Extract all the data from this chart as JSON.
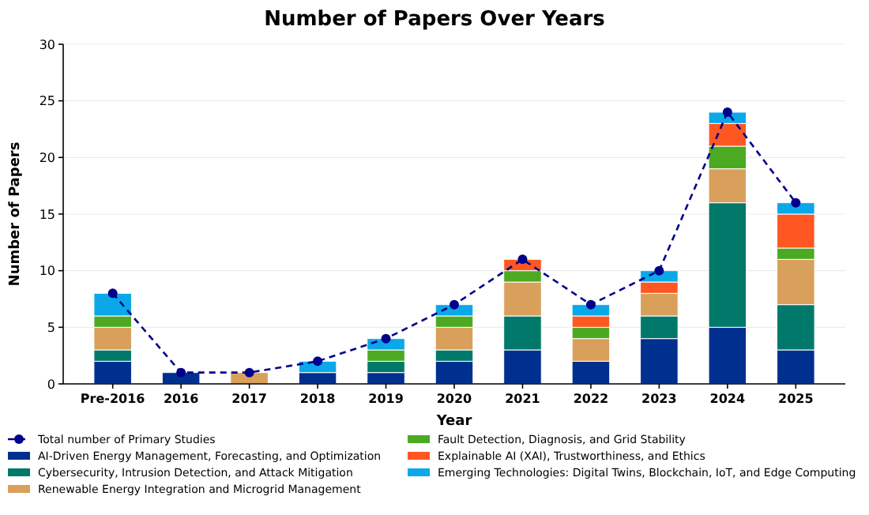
{
  "chart_data": {
    "type": "bar",
    "title": "Number of Papers Over Years",
    "xlabel": "Year",
    "ylabel": "Number of Papers",
    "categories": [
      "Pre-2016",
      "2016",
      "2017",
      "2018",
      "2019",
      "2020",
      "2021",
      "2022",
      "2023",
      "2024",
      "2025"
    ],
    "stacked": true,
    "ylim": [
      0,
      30
    ],
    "yticks": [
      0,
      5,
      10,
      15,
      20,
      25,
      30
    ],
    "grid": "y",
    "legend": "bottom",
    "series": [
      {
        "name": "Total number of Primary Studies",
        "type": "line",
        "color": "#00008b",
        "marker": "circle",
        "line_style": "dashed",
        "values": [
          8,
          1,
          1,
          2,
          4,
          7,
          11,
          7,
          10,
          24,
          16
        ]
      },
      {
        "name": "AI-Driven Energy Management, Forecasting, and Optimization",
        "color": "#00308f",
        "values": [
          2,
          1,
          0,
          1,
          1,
          2,
          3,
          2,
          4,
          5,
          3
        ]
      },
      {
        "name": "Cybersecurity, Intrusion Detection, and Attack Mitigation",
        "color": "#00796b",
        "values": [
          1,
          0,
          0,
          0,
          1,
          1,
          3,
          0,
          2,
          11,
          4
        ]
      },
      {
        "name": "Renewable Energy Integration and Microgrid Management",
        "color": "#d9a05b",
        "values": [
          2,
          0,
          1,
          0,
          0,
          2,
          3,
          2,
          2,
          3,
          4
        ]
      },
      {
        "name": "Fault Detection, Diagnosis, and Grid Stability",
        "color": "#4caa22",
        "values": [
          1,
          0,
          0,
          0,
          1,
          1,
          1,
          1,
          0,
          2,
          1
        ]
      },
      {
        "name": "Explainable AI (XAI), Trustworthiness, and Ethics",
        "color": "#ff5722",
        "values": [
          0,
          0,
          0,
          0,
          0,
          0,
          1,
          1,
          1,
          2,
          3
        ]
      },
      {
        "name": "Emerging Technologies: Digital Twins, Blockchain, IoT, and Edge Computing",
        "color": "#0aa8e8",
        "values": [
          2,
          0,
          0,
          1,
          1,
          1,
          0,
          1,
          1,
          1,
          1
        ]
      }
    ]
  }
}
